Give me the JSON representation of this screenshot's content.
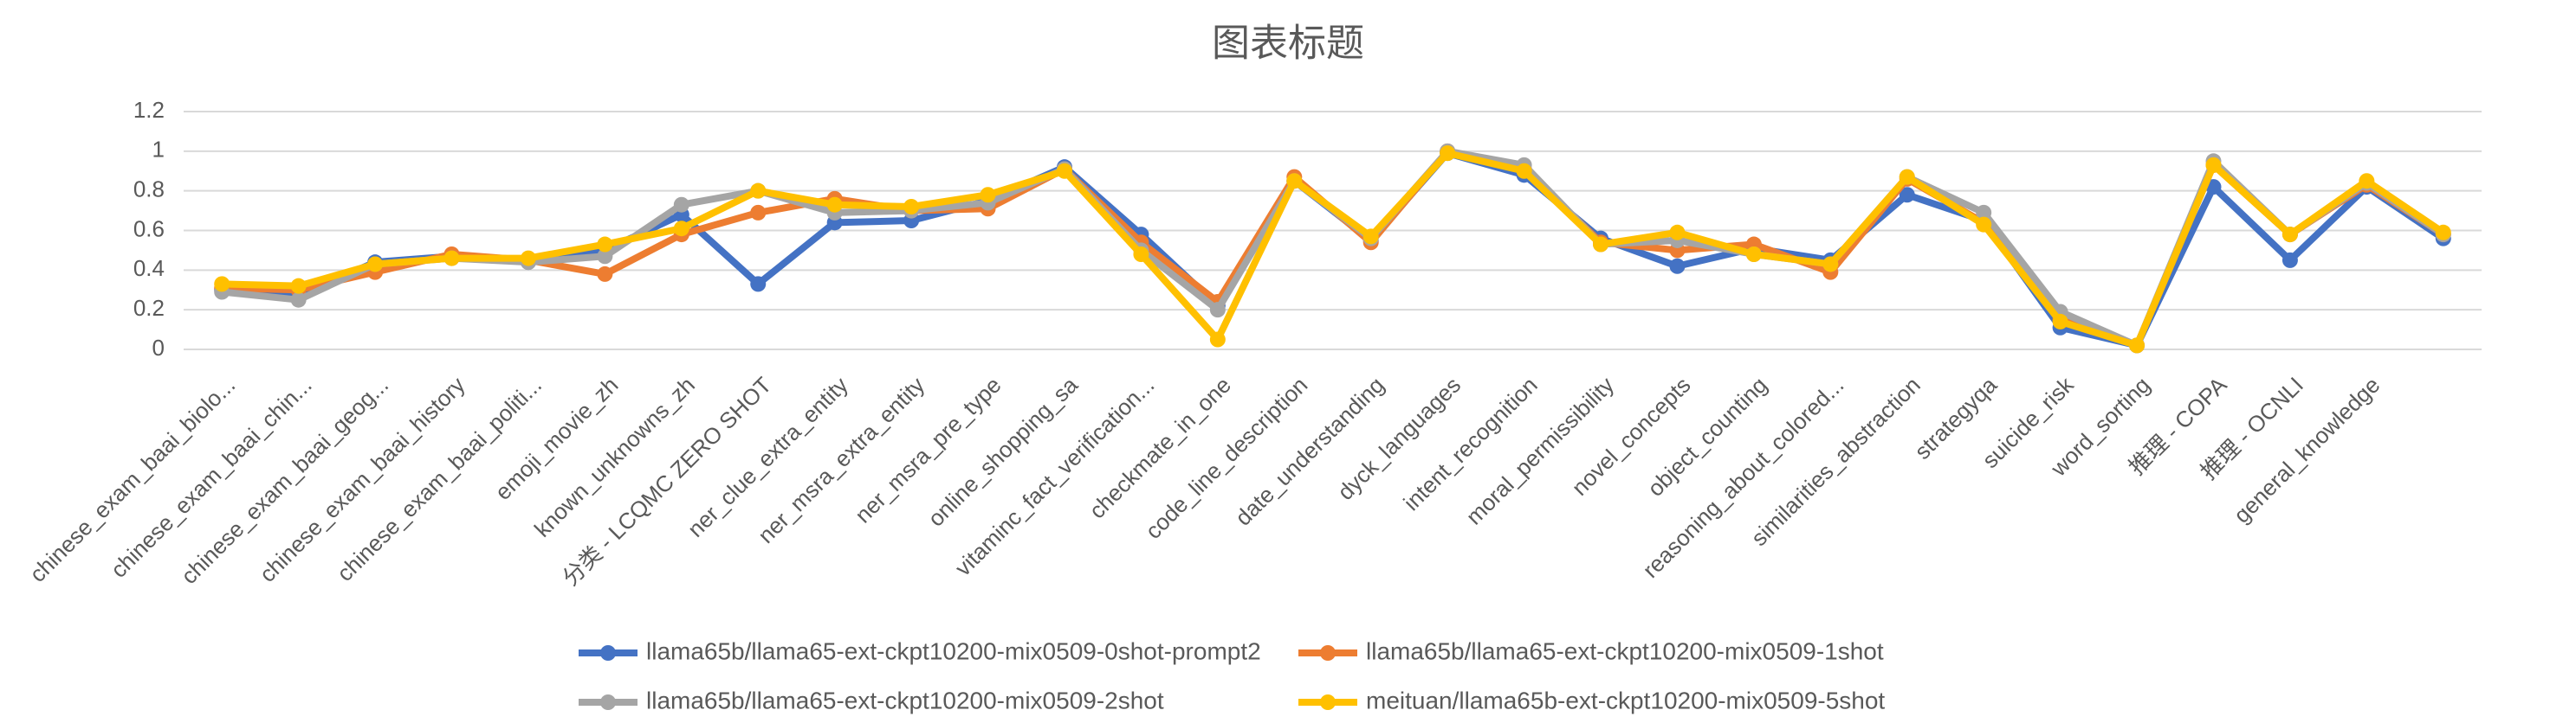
{
  "chart_data": {
    "type": "line",
    "title": "图表标题",
    "categories": [
      "chinese_exam_baai_biolo...",
      "chinese_exam_baai_chin...",
      "chinese_exam_baai_geog...",
      "chinese_exam_baai_history",
      "chinese_exam_baai_politi...",
      "emoji_movie_zh",
      "known_unknowns_zh",
      "分类 - LCQMC ZERO SHOT",
      "ner_clue_extra_entity",
      "ner_msra_extra_entity",
      "ner_msra_pre_type",
      "online_shopping_sa",
      "vitaminc_fact_verification...",
      "checkmate_in_one",
      "code_line_description",
      "date_understanding",
      "dyck_languages",
      "intent_recognition",
      "moral_permissibility",
      "novel_concepts",
      "object_counting",
      "reasoning_about_colored...",
      "similarities_abstraction",
      "strategyqa",
      "suicide_risk",
      "word_sorting",
      "推理 - COPA",
      "推理 - OCNLI",
      "general_knowledge",
      null
    ],
    "series": [
      {
        "name": "llama65b/llama65-ext-ckpt10200-mix0509-0shot-prompt2",
        "color": "#4472c4",
        "values": [
          0.3,
          0.27,
          0.44,
          0.47,
          0.44,
          0.5,
          0.68,
          0.33,
          0.64,
          0.65,
          0.75,
          0.92,
          0.58,
          0.22,
          0.85,
          0.55,
          0.99,
          0.88,
          0.56,
          0.42,
          0.51,
          0.45,
          0.78,
          0.65,
          0.11,
          0.02,
          0.82,
          0.45,
          0.82,
          0.56
        ]
      },
      {
        "name": "llama65b/llama65-ext-ckpt10200-mix0509-1shot",
        "color": "#ed7d31",
        "values": [
          0.31,
          0.3,
          0.39,
          0.48,
          0.45,
          0.38,
          0.58,
          0.69,
          0.76,
          0.7,
          0.71,
          0.91,
          0.54,
          0.24,
          0.87,
          0.54,
          1.0,
          0.91,
          0.54,
          0.5,
          0.53,
          0.39,
          0.86,
          0.64,
          0.15,
          0.02,
          0.93,
          0.58,
          0.83,
          0.58
        ]
      },
      {
        "name": "llama65b/llama65-ext-ckpt10200-mix0509-2shot",
        "color": "#a5a5a5",
        "values": [
          0.29,
          0.25,
          0.43,
          0.46,
          0.44,
          0.47,
          0.73,
          0.8,
          0.69,
          0.7,
          0.74,
          0.91,
          0.5,
          0.2,
          0.85,
          0.56,
          1.0,
          0.93,
          0.53,
          0.55,
          0.48,
          0.43,
          0.87,
          0.69,
          0.19,
          0.02,
          0.95,
          0.58,
          0.84,
          0.58
        ]
      },
      {
        "name": "meituan/llama65b-ext-ckpt10200-mix0509-5shot",
        "color": "#ffc000",
        "values": [
          0.33,
          0.32,
          0.43,
          0.46,
          0.46,
          0.53,
          0.61,
          0.8,
          0.73,
          0.72,
          0.78,
          0.9,
          0.48,
          0.05,
          0.85,
          0.57,
          0.99,
          0.9,
          0.53,
          0.59,
          0.48,
          0.43,
          0.87,
          0.63,
          0.14,
          0.02,
          0.93,
          0.58,
          0.85,
          0.59
        ]
      }
    ],
    "ylim": [
      0,
      1.2
    ],
    "yticks": [
      0,
      0.2,
      0.4,
      0.6,
      0.8,
      1,
      1.2
    ],
    "grid": true,
    "legend": "bottom"
  }
}
